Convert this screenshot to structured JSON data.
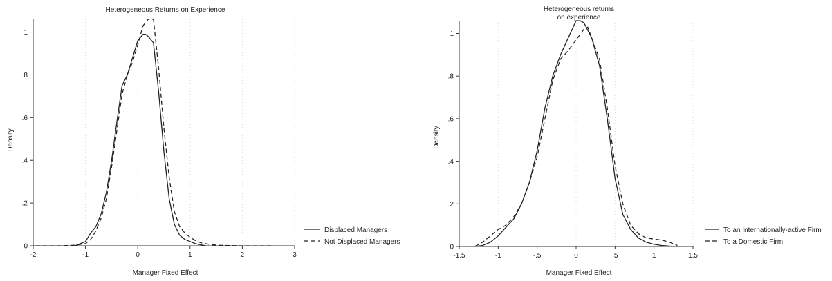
{
  "chart_data": [
    {
      "type": "line",
      "title": "Heterogeneous Returns on Experience",
      "xlabel": "Manager Fixed Effect",
      "ylabel": "Density",
      "xlim": [
        -2,
        3
      ],
      "ylim": [
        0,
        1.06
      ],
      "xticks": [
        -2,
        -1,
        0,
        1,
        2,
        3
      ],
      "xtick_labels": [
        "-2",
        "-1",
        "0",
        "1",
        "2",
        "3"
      ],
      "yticks": [
        0,
        0.2,
        0.4,
        0.6,
        0.8,
        1
      ],
      "ytick_labels": [
        "0",
        ".2",
        ".4",
        ".6",
        ".8",
        "1"
      ],
      "grid": "vertical dotted",
      "legend": "right",
      "series": [
        {
          "name": "Displaced Managers",
          "style": "solid",
          "x": [
            -1.2,
            -1.1,
            -1.0,
            -0.9,
            -0.8,
            -0.7,
            -0.6,
            -0.5,
            -0.4,
            -0.3,
            -0.2,
            -0.1,
            0.0,
            0.1,
            0.15,
            0.2,
            0.3,
            0.4,
            0.5,
            0.6,
            0.7,
            0.8,
            0.9,
            1.0,
            1.1,
            1.2,
            1.3
          ],
          "y": [
            0.0,
            0.01,
            0.02,
            0.06,
            0.09,
            0.15,
            0.25,
            0.4,
            0.58,
            0.75,
            0.8,
            0.88,
            0.96,
            0.99,
            0.99,
            0.98,
            0.95,
            0.72,
            0.44,
            0.22,
            0.1,
            0.05,
            0.03,
            0.02,
            0.01,
            0.005,
            0.0
          ]
        },
        {
          "name": "Not Displaced Managers",
          "style": "dashed",
          "x": [
            -1.95,
            -1.5,
            -1.2,
            -1.0,
            -0.9,
            -0.8,
            -0.7,
            -0.6,
            -0.5,
            -0.4,
            -0.3,
            -0.2,
            -0.1,
            0.0,
            0.1,
            0.2,
            0.3,
            0.4,
            0.5,
            0.6,
            0.7,
            0.8,
            0.9,
            1.0,
            1.1,
            1.2,
            1.4,
            1.6,
            2.0,
            2.6
          ],
          "y": [
            0.0,
            0.0,
            0.003,
            0.01,
            0.03,
            0.07,
            0.13,
            0.22,
            0.37,
            0.54,
            0.71,
            0.8,
            0.86,
            0.94,
            1.03,
            1.06,
            1.06,
            0.83,
            0.55,
            0.32,
            0.16,
            0.09,
            0.06,
            0.04,
            0.025,
            0.015,
            0.005,
            0.002,
            0.0,
            0.0
          ]
        }
      ]
    },
    {
      "type": "line",
      "title": "Heterogeneous returns",
      "subtitle": "on experience",
      "xlabel": "Manager Fixed Effect",
      "ylabel": "Density",
      "xlim": [
        -1.5,
        1.5
      ],
      "ylim": [
        0,
        1.06
      ],
      "xticks": [
        -1.5,
        -1,
        -0.5,
        0,
        0.5,
        1,
        1.5
      ],
      "xtick_labels": [
        "-1.5",
        "-1",
        "-.5",
        "0",
        ".5",
        "1",
        "1.5"
      ],
      "yticks": [
        0,
        0.2,
        0.4,
        0.6,
        0.8,
        1
      ],
      "ytick_labels": [
        "0",
        ".2",
        ".4",
        ".6",
        ".8",
        "1"
      ],
      "grid": "vertical dotted",
      "legend": "right",
      "series": [
        {
          "name": "To an Internationally-active Firm",
          "style": "solid",
          "x": [
            -1.3,
            -1.2,
            -1.1,
            -1.0,
            -0.9,
            -0.8,
            -0.7,
            -0.6,
            -0.5,
            -0.4,
            -0.3,
            -0.2,
            -0.1,
            0.0,
            0.05,
            0.1,
            0.2,
            0.3,
            0.4,
            0.5,
            0.6,
            0.7,
            0.8,
            0.9,
            1.0,
            1.1,
            1.2,
            1.3
          ],
          "y": [
            0.0,
            0.005,
            0.02,
            0.05,
            0.09,
            0.13,
            0.2,
            0.3,
            0.45,
            0.65,
            0.8,
            0.9,
            0.98,
            1.06,
            1.06,
            1.05,
            0.98,
            0.85,
            0.6,
            0.32,
            0.15,
            0.08,
            0.04,
            0.02,
            0.01,
            0.005,
            0.002,
            0.0
          ]
        },
        {
          "name": "To a Domestic Firm",
          "style": "dashed",
          "x": [
            -1.3,
            -1.2,
            -1.1,
            -1.0,
            -0.9,
            -0.8,
            -0.7,
            -0.6,
            -0.5,
            -0.4,
            -0.3,
            -0.2,
            -0.1,
            0.0,
            0.1,
            0.15,
            0.2,
            0.3,
            0.4,
            0.5,
            0.6,
            0.7,
            0.8,
            0.9,
            1.0,
            1.1,
            1.2,
            1.3
          ],
          "y": [
            0.0,
            0.02,
            0.05,
            0.08,
            0.1,
            0.14,
            0.2,
            0.3,
            0.42,
            0.6,
            0.78,
            0.88,
            0.92,
            0.97,
            1.02,
            1.03,
            0.98,
            0.88,
            0.65,
            0.38,
            0.2,
            0.1,
            0.06,
            0.04,
            0.035,
            0.03,
            0.02,
            0.005
          ]
        }
      ]
    }
  ]
}
